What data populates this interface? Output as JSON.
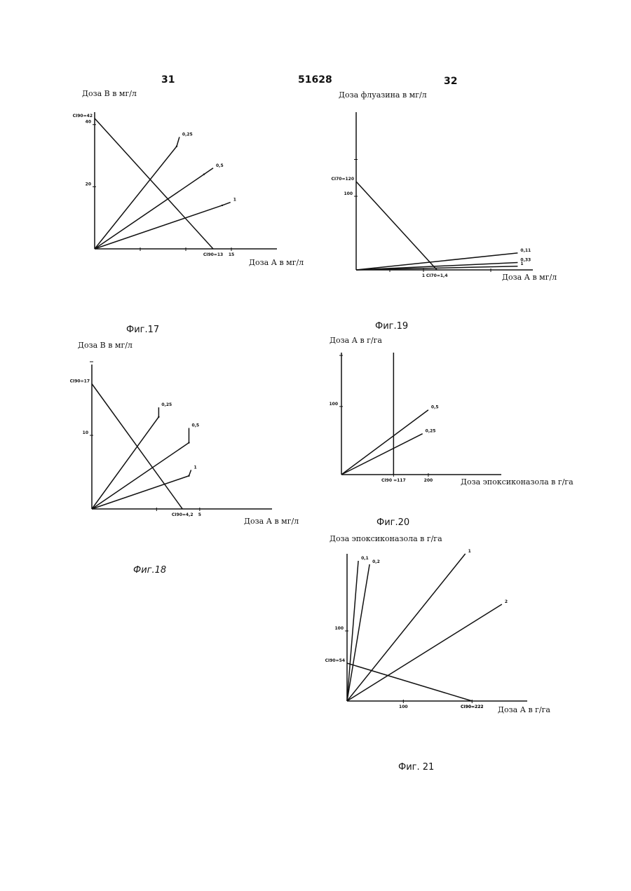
{
  "header": {
    "page_left": "31",
    "doc_number": "51628",
    "page_right": "32"
  },
  "chart_data": [
    {
      "id": "fig17",
      "type": "line",
      "caption": "Фиг.17",
      "ylabel": "Доза В в мг/л",
      "xlabel": "Доза А в мг/л",
      "xlim": [
        0,
        20
      ],
      "ylim": [
        0,
        44
      ],
      "x_ticks": [
        {
          "value": 5,
          "label": ""
        },
        {
          "value": 10,
          "label": ""
        },
        {
          "value": 15,
          "label": "15"
        }
      ],
      "y_ticks": [
        {
          "value": 20,
          "label": "20"
        },
        {
          "value": 40,
          "label": "40"
        }
      ],
      "isobole": {
        "name": "",
        "y_intercept_label": "CI90=42",
        "x_intercept_label": "CI90=13",
        "x_intercept": 13,
        "y_intercept": 42
      },
      "series": [
        {
          "name": "0,25",
          "x": [
            0,
            9,
            9.3
          ],
          "y": [
            0,
            33,
            36
          ]
        },
        {
          "name": "0,5",
          "x": [
            0,
            12,
            13
          ],
          "y": [
            0,
            24,
            26
          ]
        },
        {
          "name": "1",
          "x": [
            0,
            14,
            14.9
          ],
          "y": [
            0,
            14,
            15
          ]
        }
      ]
    },
    {
      "id": "fig18",
      "type": "line",
      "caption": "Фиг.18",
      "ylabel": "Доза В в мг/л",
      "xlabel": "Доза А в мг/л",
      "xlim": [
        0,
        6.5
      ],
      "ylim": [
        0,
        20
      ],
      "x_ticks": [
        {
          "value": 3,
          "label": ""
        },
        {
          "value": 5,
          "label": "5"
        }
      ],
      "y_ticks": [
        {
          "value": 10,
          "label": "10"
        },
        {
          "value": 20,
          "label": ""
        }
      ],
      "isobole": {
        "name": "",
        "y_intercept_label": "CI90=17",
        "x_intercept_label": "CI90=4,2",
        "x_intercept": 4.2,
        "y_intercept": 17
      },
      "series": [
        {
          "name": "0,25",
          "x": [
            0,
            3.1,
            3.1
          ],
          "y": [
            0,
            12.5,
            13.8
          ]
        },
        {
          "name": "0,5",
          "x": [
            0,
            4.5,
            4.5
          ],
          "y": [
            0,
            9,
            11
          ]
        },
        {
          "name": "1",
          "x": [
            0,
            4.5,
            4.6
          ],
          "y": [
            0,
            4.5,
            5.3
          ]
        }
      ]
    },
    {
      "id": "fig19",
      "type": "line",
      "caption": "Фиг.19",
      "ylabel": "Доза флуазина в мг/л",
      "xlabel": "Доза А в мг/л",
      "xlim": [
        0,
        2.5
      ],
      "ylim": [
        0,
        200
      ],
      "x_ticks": [
        {
          "value": 0.5,
          "label": ""
        },
        {
          "value": 1,
          "label": "1"
        },
        {
          "value": 2,
          "label": ""
        }
      ],
      "y_ticks": [
        {
          "value": 100,
          "label": "100"
        },
        {
          "value": 150,
          "label": ""
        }
      ],
      "isobole": {
        "name": "",
        "y_intercept_label": "CI70=120",
        "x_intercept_label": "CI70=1,4",
        "x_intercept": 1.2,
        "y_intercept": 120
      },
      "series": [
        {
          "name": "0,11",
          "x": [
            0,
            2.4
          ],
          "y": [
            0,
            23
          ]
        },
        {
          "name": "0,33",
          "x": [
            0,
            2.4
          ],
          "y": [
            0,
            10
          ]
        },
        {
          "name": "1",
          "x": [
            0,
            2.4
          ],
          "y": [
            0,
            5
          ]
        }
      ]
    },
    {
      "id": "fig20",
      "type": "line",
      "caption": "Фиг.20",
      "ylabel": "Доза А в г/га",
      "xlabel": "Доза эпоксиконазола в г/га",
      "xlim": [
        0,
        230
      ],
      "ylim": [
        0,
        175
      ],
      "x_ticks": [
        {
          "value": 90,
          "label": "CI90 =117"
        },
        {
          "value": 150,
          "label": "200"
        }
      ],
      "y_ticks": [
        {
          "value": 100,
          "label": "100"
        },
        {
          "value": 175,
          "label": ""
        }
      ],
      "isobole": {
        "name": "",
        "vertical_x": 90,
        "label": "CI90 =117"
      },
      "series": [
        {
          "name": "0,5",
          "x": [
            0,
            150
          ],
          "y": [
            0,
            95
          ]
        },
        {
          "name": "0,25",
          "x": [
            0,
            140
          ],
          "y": [
            0,
            60
          ]
        }
      ]
    },
    {
      "id": "fig21",
      "type": "line",
      "caption": "Фиг. 21",
      "ylabel": "Доза эпоксиконазола в г/га",
      "xlabel": "Доза А в г/га",
      "xlim": [
        0,
        320
      ],
      "ylim": [
        0,
        210
      ],
      "x_ticks": [
        {
          "value": 100,
          "label": "100"
        },
        {
          "value": 222,
          "label": "CI90=222"
        }
      ],
      "y_ticks": [
        {
          "value": 100,
          "label": "100"
        }
      ],
      "isobole": {
        "name": "",
        "y_intercept_label": "CI90=54",
        "x_intercept_label": "CI90=222",
        "x_intercept": 222,
        "y_intercept": 54
      },
      "series": [
        {
          "name": "0,1",
          "x": [
            0,
            20
          ],
          "y": [
            0,
            200
          ]
        },
        {
          "name": "0,2",
          "x": [
            0,
            40
          ],
          "y": [
            0,
            195
          ]
        },
        {
          "name": "1",
          "x": [
            0,
            210
          ],
          "y": [
            0,
            210
          ]
        },
        {
          "name": "2",
          "x": [
            0,
            275
          ],
          "y": [
            0,
            138
          ]
        }
      ]
    }
  ]
}
